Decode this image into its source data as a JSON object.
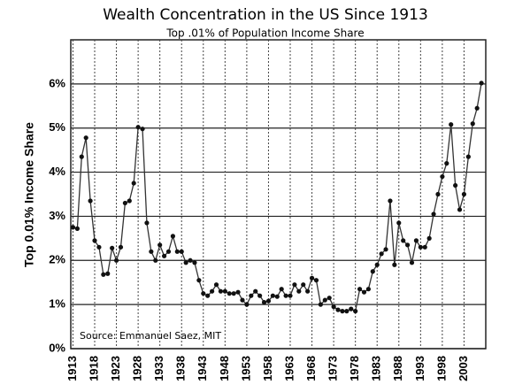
{
  "chart_data": {
    "type": "line",
    "title": "Wealth Concentration in the US Since 1913",
    "subtitle": "Top .01% of Population Income Share",
    "y_label": "Top 0.01% Income Share",
    "annotation": "Source:  Emmanuel Saez, MIT",
    "x": [
      1913,
      1914,
      1915,
      1916,
      1917,
      1918,
      1919,
      1920,
      1921,
      1922,
      1923,
      1924,
      1925,
      1926,
      1927,
      1928,
      1929,
      1930,
      1931,
      1932,
      1933,
      1934,
      1935,
      1936,
      1937,
      1938,
      1939,
      1940,
      1941,
      1942,
      1943,
      1944,
      1945,
      1946,
      1947,
      1948,
      1949,
      1950,
      1951,
      1952,
      1953,
      1954,
      1955,
      1956,
      1957,
      1958,
      1959,
      1960,
      1961,
      1962,
      1963,
      1964,
      1965,
      1966,
      1967,
      1968,
      1969,
      1970,
      1971,
      1972,
      1973,
      1974,
      1975,
      1976,
      1977,
      1978,
      1979,
      1980,
      1981,
      1982,
      1983,
      1984,
      1985,
      1986,
      1987,
      1988,
      1989,
      1990,
      1991,
      1992,
      1993,
      1994,
      1995,
      1996,
      1997,
      1998,
      1999,
      2000,
      2001,
      2002,
      2003,
      2004,
      2005,
      2006,
      2007
    ],
    "series": [
      {
        "name": "Top 0.01% Income Share",
        "color": "#333333",
        "values": [
          2.75,
          2.72,
          4.35,
          4.78,
          3.35,
          2.45,
          2.3,
          1.68,
          1.7,
          2.28,
          2.0,
          2.3,
          3.3,
          3.35,
          3.75,
          5.02,
          4.98,
          2.85,
          2.2,
          2.0,
          2.35,
          2.1,
          2.2,
          2.55,
          2.2,
          2.2,
          1.95,
          2.0,
          1.95,
          1.55,
          1.25,
          1.2,
          1.3,
          1.45,
          1.3,
          1.3,
          1.25,
          1.25,
          1.28,
          1.1,
          1.0,
          1.2,
          1.3,
          1.2,
          1.05,
          1.08,
          1.2,
          1.18,
          1.35,
          1.2,
          1.2,
          1.45,
          1.3,
          1.45,
          1.3,
          1.6,
          1.55,
          1.0,
          1.1,
          1.15,
          0.95,
          0.88,
          0.85,
          0.85,
          0.9,
          0.85,
          1.35,
          1.28,
          1.35,
          1.75,
          1.9,
          2.15,
          2.25,
          3.35,
          1.9,
          2.85,
          2.45,
          2.35,
          1.95,
          2.45,
          2.3,
          2.3,
          2.5,
          3.05,
          3.5,
          3.9,
          4.2,
          5.08,
          3.7,
          3.15,
          3.5,
          4.35,
          5.1,
          5.45,
          6.02
        ]
      }
    ],
    "xlim": [
      1912.5,
      2008
    ],
    "xticks": [
      1913,
      1918,
      1923,
      1928,
      1933,
      1938,
      1943,
      1948,
      1953,
      1958,
      1963,
      1968,
      1973,
      1978,
      1983,
      1988,
      1993,
      1998,
      2003
    ],
    "ylim": [
      0,
      7
    ],
    "yticks": [
      {
        "value": 0,
        "label": "0%"
      },
      {
        "value": 1,
        "label": "1%"
      },
      {
        "value": 2,
        "label": "2%"
      },
      {
        "value": 3,
        "label": "3%"
      },
      {
        "value": 4,
        "label": "4%"
      },
      {
        "value": 5,
        "label": "5%"
      },
      {
        "value": 6,
        "label": "6%"
      }
    ],
    "grid": true
  }
}
